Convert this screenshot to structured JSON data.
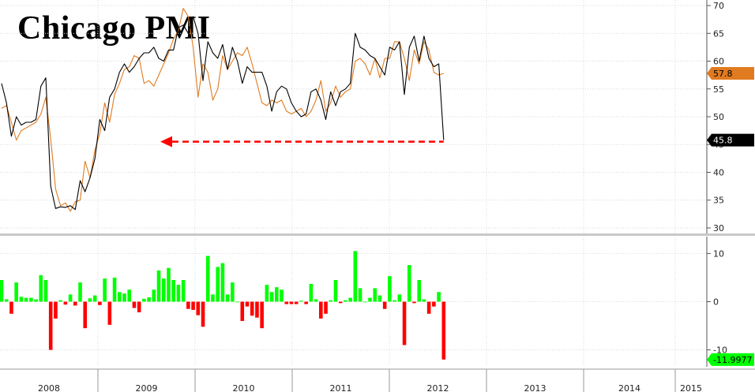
{
  "chart_data": [
    {
      "type": "line",
      "title": "Chicago PMI",
      "ylim": [
        29,
        71
      ],
      "yticks": [
        30,
        35,
        40,
        45,
        50,
        55,
        60,
        65,
        70
      ],
      "xlabels": [
        "2008",
        "2009",
        "2010",
        "2011",
        "2012",
        "2013",
        "2014",
        "2015"
      ],
      "grid": true,
      "series": [
        {
          "color": "#000000",
          "values": [
            56.0,
            52.5,
            46.5,
            50.0,
            48.5,
            49.0,
            49.0,
            49.5,
            55.5,
            57.0,
            37.5,
            33.5,
            33.8,
            33.7,
            34.0,
            33.3,
            38.5,
            36.5,
            39.0,
            42.5,
            49.5,
            47.5,
            53.5,
            55.0,
            58.0,
            59.5,
            58.0,
            59.0,
            60.5,
            61.5,
            61.5,
            62.5,
            60.5,
            60.0,
            62.0,
            62.0,
            66.0,
            66.5,
            65.0,
            68.0,
            65.0,
            56.5,
            63.5,
            61.5,
            60.5,
            63.0,
            58.5,
            62.5,
            60.0,
            56.0,
            59.0,
            58.0,
            58.0,
            58.0,
            55.5,
            51.0,
            54.5,
            55.5,
            55.0,
            52.5,
            51.0,
            50.0,
            50.5,
            54.5,
            55.0,
            53.0,
            49.5,
            54.5,
            52.0,
            54.5,
            55.0,
            56.0,
            65.0,
            62.5,
            62.0,
            61.0,
            60.5,
            59.0,
            57.5,
            62.5,
            62.0,
            63.5,
            54.0,
            62.5,
            64.5,
            60.0,
            64.5,
            60.5,
            59.0,
            59.5,
            45.8
          ]
        },
        {
          "color": "#e07b20",
          "values": [
            51.5,
            52.0,
            49.0,
            45.8,
            47.5,
            48.0,
            48.5,
            49.0,
            50.5,
            53.5,
            46.0,
            37.0,
            34.0,
            34.5,
            33.0,
            34.7,
            35.0,
            42.0,
            39.0,
            44.0,
            47.0,
            52.5,
            49.0,
            54.0,
            56.0,
            58.5,
            59.0,
            61.0,
            60.5,
            56.0,
            56.5,
            55.5,
            57.5,
            59.5,
            61.5,
            64.0,
            65.5,
            69.5,
            68.0,
            62.5,
            53.5,
            59.5,
            58.0,
            53.0,
            55.0,
            61.0,
            58.5,
            60.0,
            61.5,
            61.0,
            62.5,
            59.5,
            56.0,
            52.5,
            52.0,
            53.0,
            52.5,
            53.0,
            51.0,
            50.5,
            51.0,
            51.5,
            50.0,
            51.0,
            53.0,
            56.5,
            51.0,
            52.5,
            55.5,
            53.5,
            54.5,
            55.0,
            60.0,
            60.5,
            59.5,
            57.5,
            60.5,
            57.0,
            60.5,
            60.5,
            63.5,
            63.5,
            60.5,
            56.5,
            62.0,
            59.5,
            63.5,
            62.0,
            58.0,
            57.5,
            57.8
          ]
        }
      ],
      "last_labels": {
        "orange": "57.8",
        "black": "45.8"
      }
    },
    {
      "type": "bar",
      "ylim": [
        -13.5,
        13.5
      ],
      "yticks": [
        10,
        0,
        -10
      ],
      "positive_color": "#00ff00",
      "negative_color": "#ff0000",
      "values": [
        4.5,
        0.5,
        -2.5,
        4.0,
        1.0,
        0.8,
        0.8,
        0.5,
        5.5,
        4.5,
        -10.0,
        -3.5,
        0.3,
        -0.6,
        1.5,
        -0.8,
        4.0,
        -5.5,
        0.7,
        1.3,
        -0.7,
        4.8,
        -4.8,
        5.0,
        2.0,
        1.7,
        2.5,
        -1.3,
        -2.2,
        0.6,
        0.9,
        2.5,
        6.5,
        4.8,
        7.0,
        4.5,
        3.5,
        4.5,
        -1.5,
        -1.7,
        -2.8,
        -5.2,
        9.5,
        1.5,
        7.2,
        8.0,
        1.5,
        4.0,
        0.0,
        -4.0,
        -1.0,
        -2.9,
        -3.3,
        -5.5,
        3.5,
        2.0,
        3.0,
        2.5,
        -0.5,
        -0.5,
        -0.5,
        0.2,
        -0.5,
        3.7,
        0.5,
        -3.5,
        -2.5,
        0.3,
        4.5,
        -0.3,
        0.3,
        0.8,
        10.5,
        2.8,
        0.0,
        0.8,
        2.8,
        1.3,
        -1.5,
        5.3,
        0.3,
        1.5,
        -9.0,
        7.6,
        -0.3,
        4.5,
        0.5,
        -2.5,
        -1.0,
        2.0,
        -11.9977
      ]
    }
  ]
}
